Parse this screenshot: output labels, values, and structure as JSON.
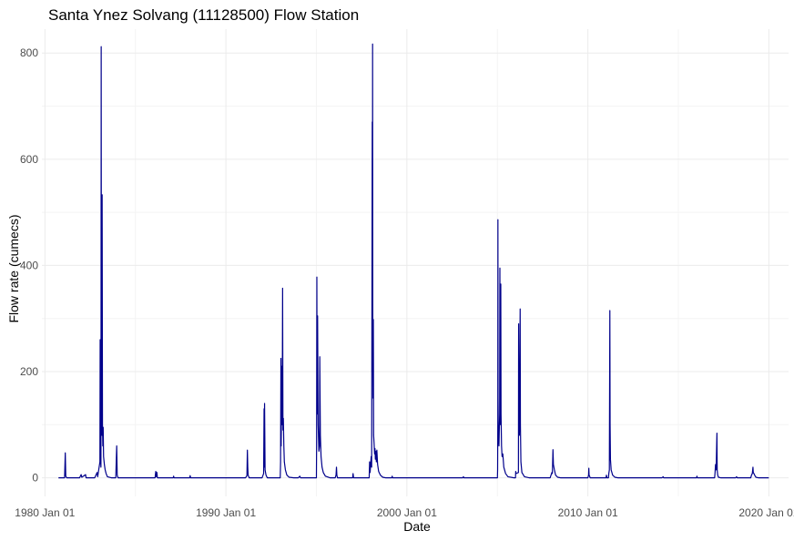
{
  "chart_data": {
    "type": "line",
    "title": "Santa Ynez Solvang (11128500) Flow Station",
    "xlabel": "Date",
    "ylabel": "Flow rate (cumecs)",
    "x_ticks": [
      "1980 Jan 01",
      "1990 Jan 01",
      "2000 Jan 01",
      "2010 Jan 01",
      "2020 Jan 01"
    ],
    "xlim": [
      "1979-11-01",
      "2021-02-01"
    ],
    "y_ticks": [
      0,
      200,
      400,
      600,
      800
    ],
    "ylim": [
      -35,
      845
    ],
    "grid": true,
    "legend": "none",
    "line_color": "#00008b",
    "series": [
      {
        "points": [
          [
            "1980-10-01",
            0
          ],
          [
            "1981-02-01",
            0
          ],
          [
            "1981-02-15",
            47
          ],
          [
            "1981-02-25",
            3
          ],
          [
            "1981-03-15",
            0
          ],
          [
            "1981-12-01",
            0
          ],
          [
            "1982-01-01",
            6
          ],
          [
            "1982-01-15",
            1
          ],
          [
            "1982-04-01",
            6
          ],
          [
            "1982-04-10",
            0
          ],
          [
            "1982-10-01",
            0
          ],
          [
            "1982-11-20",
            10
          ],
          [
            "1982-12-01",
            2
          ],
          [
            "1983-01-15",
            30
          ],
          [
            "1983-01-20",
            260
          ],
          [
            "1983-01-25",
            40
          ],
          [
            "1983-02-05",
            20
          ],
          [
            "1983-02-10",
            812
          ],
          [
            "1983-02-15",
            120
          ],
          [
            "1983-02-25",
            80
          ],
          [
            "1983-03-01",
            533
          ],
          [
            "1983-03-08",
            100
          ],
          [
            "1983-03-15",
            60
          ],
          [
            "1983-03-22",
            95
          ],
          [
            "1983-03-30",
            40
          ],
          [
            "1983-04-15",
            25
          ],
          [
            "1983-05-01",
            15
          ],
          [
            "1983-05-20",
            8
          ],
          [
            "1983-06-15",
            2
          ],
          [
            "1983-09-01",
            0
          ],
          [
            "1983-12-01",
            0
          ],
          [
            "1983-12-20",
            60
          ],
          [
            "1983-12-30",
            5
          ],
          [
            "1984-01-15",
            0
          ],
          [
            "1986-02-01",
            0
          ],
          [
            "1986-02-15",
            12
          ],
          [
            "1986-02-25",
            2
          ],
          [
            "1986-03-10",
            10
          ],
          [
            "1986-03-20",
            0
          ],
          [
            "1987-02-01",
            0
          ],
          [
            "1987-02-10",
            3
          ],
          [
            "1987-02-20",
            0
          ],
          [
            "1988-01-01",
            0
          ],
          [
            "1988-01-10",
            4
          ],
          [
            "1988-01-20",
            0
          ],
          [
            "1991-02-01",
            0
          ],
          [
            "1991-03-01",
            4
          ],
          [
            "1991-03-10",
            52
          ],
          [
            "1991-03-18",
            20
          ],
          [
            "1991-03-25",
            5
          ],
          [
            "1991-04-15",
            0
          ],
          [
            "1992-01-01",
            0
          ],
          [
            "1992-02-01",
            8
          ],
          [
            "1992-02-10",
            130
          ],
          [
            "1992-02-15",
            20
          ],
          [
            "1992-02-20",
            140
          ],
          [
            "1992-03-01",
            15
          ],
          [
            "1992-03-20",
            5
          ],
          [
            "1992-04-15",
            0
          ],
          [
            "1993-01-01",
            0
          ],
          [
            "1993-01-08",
            30
          ],
          [
            "1993-01-15",
            225
          ],
          [
            "1993-01-20",
            60
          ],
          [
            "1993-02-01",
            210
          ],
          [
            "1993-02-10",
            100
          ],
          [
            "1993-02-18",
            357
          ],
          [
            "1993-02-25",
            90
          ],
          [
            "1993-03-05",
            112
          ],
          [
            "1993-03-15",
            60
          ],
          [
            "1993-03-25",
            30
          ],
          [
            "1993-04-15",
            15
          ],
          [
            "1993-05-15",
            5
          ],
          [
            "1993-07-01",
            1
          ],
          [
            "1993-10-01",
            0
          ],
          [
            "1994-01-01",
            0
          ],
          [
            "1994-02-01",
            3
          ],
          [
            "1994-02-15",
            0
          ],
          [
            "1995-01-01",
            0
          ],
          [
            "1995-01-05",
            60
          ],
          [
            "1995-01-10",
            378
          ],
          [
            "1995-01-15",
            120
          ],
          [
            "1995-01-25",
            305
          ],
          [
            "1995-02-05",
            100
          ],
          [
            "1995-02-20",
            50
          ],
          [
            "1995-03-05",
            60
          ],
          [
            "1995-03-10",
            228
          ],
          [
            "1995-03-15",
            165
          ],
          [
            "1995-03-22",
            80
          ],
          [
            "1995-04-05",
            40
          ],
          [
            "1995-04-25",
            20
          ],
          [
            "1995-05-20",
            10
          ],
          [
            "1995-07-01",
            3
          ],
          [
            "1995-10-01",
            0
          ],
          [
            "1996-01-15",
            0
          ],
          [
            "1996-02-01",
            5
          ],
          [
            "1996-02-10",
            20
          ],
          [
            "1996-02-18",
            5
          ],
          [
            "1996-03-01",
            0
          ],
          [
            "1997-01-01",
            0
          ],
          [
            "1997-01-10",
            8
          ],
          [
            "1997-01-20",
            0
          ],
          [
            "1997-12-01",
            0
          ],
          [
            "1997-12-10",
            30
          ],
          [
            "1997-12-20",
            10
          ],
          [
            "1998-01-10",
            40
          ],
          [
            "1998-01-20",
            20
          ],
          [
            "1998-02-01",
            670
          ],
          [
            "1998-02-05",
            200
          ],
          [
            "1998-02-08",
            817
          ],
          [
            "1998-02-12",
            300
          ],
          [
            "1998-02-18",
            150
          ],
          [
            "1998-02-23",
            298
          ],
          [
            "1998-03-01",
            80
          ],
          [
            "1998-03-10",
            65
          ],
          [
            "1998-03-20",
            45
          ],
          [
            "1998-03-28",
            55
          ],
          [
            "1998-04-05",
            35
          ],
          [
            "1998-04-15",
            50
          ],
          [
            "1998-04-25",
            30
          ],
          [
            "1998-05-05",
            52
          ],
          [
            "1998-05-20",
            25
          ],
          [
            "1998-06-10",
            12
          ],
          [
            "1998-07-15",
            5
          ],
          [
            "1998-09-01",
            1
          ],
          [
            "1998-11-01",
            0
          ],
          [
            "1999-03-01",
            0
          ],
          [
            "1999-03-10",
            3
          ],
          [
            "1999-03-20",
            0
          ],
          [
            "2003-02-01",
            0
          ],
          [
            "2003-02-15",
            2
          ],
          [
            "2003-02-25",
            0
          ],
          [
            "2005-01-01",
            0
          ],
          [
            "2005-01-05",
            15
          ],
          [
            "2005-01-09",
            110
          ],
          [
            "2005-01-11",
            486
          ],
          [
            "2005-01-14",
            150
          ],
          [
            "2005-01-20",
            80
          ],
          [
            "2005-02-01",
            60
          ],
          [
            "2005-02-15",
            120
          ],
          [
            "2005-02-20",
            395
          ],
          [
            "2005-02-25",
            150
          ],
          [
            "2005-03-05",
            100
          ],
          [
            "2005-03-10",
            365
          ],
          [
            "2005-03-15",
            120
          ],
          [
            "2005-03-25",
            60
          ],
          [
            "2005-04-05",
            40
          ],
          [
            "2005-04-20",
            45
          ],
          [
            "2005-05-10",
            20
          ],
          [
            "2005-06-15",
            8
          ],
          [
            "2005-08-01",
            2
          ],
          [
            "2005-12-01",
            0
          ],
          [
            "2006-01-01",
            0
          ],
          [
            "2006-01-05",
            12
          ],
          [
            "2006-01-10",
            8
          ],
          [
            "2006-03-01",
            10
          ],
          [
            "2006-03-05",
            290
          ],
          [
            "2006-03-10",
            90
          ],
          [
            "2006-03-20",
            80
          ],
          [
            "2006-04-05",
            318
          ],
          [
            "2006-04-10",
            100
          ],
          [
            "2006-04-20",
            30
          ],
          [
            "2006-05-10",
            10
          ],
          [
            "2006-07-01",
            2
          ],
          [
            "2006-10-01",
            0
          ],
          [
            "2007-12-01",
            0
          ],
          [
            "2008-01-05",
            10
          ],
          [
            "2008-01-15",
            8
          ],
          [
            "2008-01-27",
            53
          ],
          [
            "2008-02-05",
            25
          ],
          [
            "2008-02-25",
            15
          ],
          [
            "2008-03-20",
            5
          ],
          [
            "2008-05-01",
            1
          ],
          [
            "2008-07-01",
            0
          ],
          [
            "2010-01-01",
            0
          ],
          [
            "2010-01-15",
            5
          ],
          [
            "2010-01-20",
            18
          ],
          [
            "2010-01-25",
            5
          ],
          [
            "2010-02-05",
            3
          ],
          [
            "2010-02-15",
            0
          ],
          [
            "2011-01-01",
            0
          ],
          [
            "2011-01-10",
            5
          ],
          [
            "2011-01-20",
            0
          ],
          [
            "2011-02-20",
            0
          ],
          [
            "2011-02-27",
            8
          ],
          [
            "2011-03-10",
            15
          ],
          [
            "2011-03-20",
            315
          ],
          [
            "2011-03-25",
            100
          ],
          [
            "2011-04-01",
            35
          ],
          [
            "2011-04-15",
            15
          ],
          [
            "2011-05-15",
            5
          ],
          [
            "2011-07-01",
            1
          ],
          [
            "2011-09-01",
            0
          ],
          [
            "2014-02-01",
            0
          ],
          [
            "2014-03-01",
            2
          ],
          [
            "2014-03-10",
            0
          ],
          [
            "2016-01-01",
            0
          ],
          [
            "2016-01-10",
            3
          ],
          [
            "2016-01-20",
            0
          ],
          [
            "2017-01-01",
            0
          ],
          [
            "2017-01-10",
            10
          ],
          [
            "2017-01-20",
            25
          ],
          [
            "2017-02-01",
            15
          ],
          [
            "2017-02-17",
            84
          ],
          [
            "2017-02-22",
            15
          ],
          [
            "2017-03-05",
            5
          ],
          [
            "2017-03-20",
            1
          ],
          [
            "2017-05-01",
            0
          ],
          [
            "2018-03-01",
            0
          ],
          [
            "2018-03-20",
            2
          ],
          [
            "2018-04-01",
            0
          ],
          [
            "2019-01-01",
            0
          ],
          [
            "2019-01-15",
            5
          ],
          [
            "2019-02-01",
            8
          ],
          [
            "2019-02-14",
            20
          ],
          [
            "2019-02-20",
            10
          ],
          [
            "2019-03-05",
            8
          ],
          [
            "2019-03-20",
            5
          ],
          [
            "2019-04-15",
            1
          ],
          [
            "2019-06-01",
            0
          ],
          [
            "2019-12-31",
            0
          ]
        ]
      }
    ]
  }
}
